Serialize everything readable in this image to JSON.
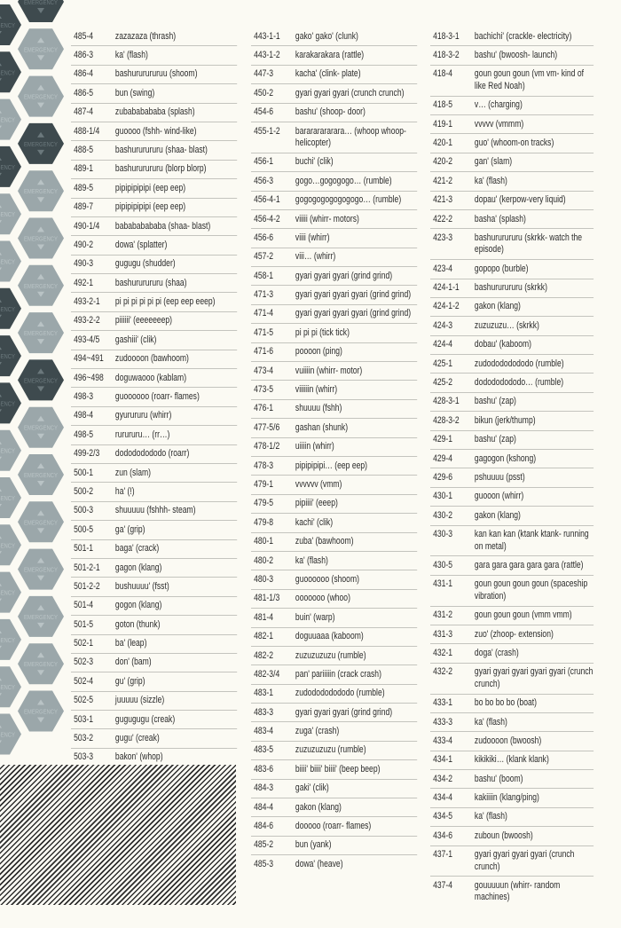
{
  "decoration": {
    "hex_label": "EMERGENCY",
    "colors": {
      "dark_hex": "#3e4a4e",
      "light_hex": "#9ba7aa",
      "dark_text": "#6b787c",
      "light_text": "#b9c3c5",
      "background": "#fbfaf3"
    }
  },
  "columns": [
    {
      "entries": [
        {
          "code": "485-4",
          "text": "zazazaza (thrash)"
        },
        {
          "code": "486-3",
          "text": "ka' (flash)"
        },
        {
          "code": "486-4",
          "text": "bashururururuu (shoom)"
        },
        {
          "code": "486-5",
          "text": "bun (swing)"
        },
        {
          "code": "487-4",
          "text": "zubababababa (splash)"
        },
        {
          "code": "488-1/4",
          "text": "guoooo (fshh- wind-like)"
        },
        {
          "code": "488-5",
          "text": "bashururururu (shaa- blast)"
        },
        {
          "code": "489-1",
          "text": "bashururururu (blorp blorp)"
        },
        {
          "code": "489-5",
          "text": "pipipipipipi (eep eep)"
        },
        {
          "code": "489-7",
          "text": "pipipipipipi (eep eep)"
        },
        {
          "code": "490-1/4",
          "text": "babababababa (shaa- blast)"
        },
        {
          "code": "490-2",
          "text": "dowa' (splatter)"
        },
        {
          "code": "490-3",
          "text": "gugugu (shudder)"
        },
        {
          "code": "492-1",
          "text": "bashururururu (shaa)"
        },
        {
          "code": "493-2-1",
          "text": "pi pi pi pi pi pi (eep eep eeep)"
        },
        {
          "code": "493-2-2",
          "text": "piiiiii' (eeeeeeep)"
        },
        {
          "code": "493-4/5",
          "text": "gashiii' (clik)"
        },
        {
          "code": "494~491",
          "text": "zudoooon (bawhoom)"
        },
        {
          "code": "496~498",
          "text": "doguwaooo (kablam)"
        },
        {
          "code": "498-3",
          "text": "guoooooo (roarr- flames)"
        },
        {
          "code": "498-4",
          "text": "gyurururu (whirr)"
        },
        {
          "code": "498-5",
          "text": "rurururu… (rr…)"
        },
        {
          "code": "499-2/3",
          "text": "dodododododo (roarr)"
        },
        {
          "code": "500-1",
          "text": "zun (slam)"
        },
        {
          "code": "500-2",
          "text": "ha' (!)"
        },
        {
          "code": "500-3",
          "text": "shuuuuu (fshhh- steam)"
        },
        {
          "code": "500-5",
          "text": "ga' (grip)"
        },
        {
          "code": "501-1",
          "text": "baga' (crack)"
        },
        {
          "code": "501-2-1",
          "text": "gagon (klang)"
        },
        {
          "code": "501-2-2",
          "text": "bushuuuu' (fsst)"
        },
        {
          "code": "501-4",
          "text": "gogon (klang)"
        },
        {
          "code": "501-5",
          "text": "goton (thunk)"
        },
        {
          "code": "502-1",
          "text": "ba' (leap)"
        },
        {
          "code": "502-3",
          "text": "don' (bam)"
        },
        {
          "code": "502-4",
          "text": "gu' (grip)"
        },
        {
          "code": "502-5",
          "text": "juuuuu (sizzle)"
        },
        {
          "code": "503-1",
          "text": "gugugugu (creak)"
        },
        {
          "code": "503-2",
          "text": "gugu' (creak)"
        },
        {
          "code": "503-3",
          "text": "bakon' (whop)"
        }
      ]
    },
    {
      "entries": [
        {
          "code": "443-1-1",
          "text": "gako' gako' (clunk)"
        },
        {
          "code": "443-1-2",
          "text": "karakarakara (rattle)"
        },
        {
          "code": "447-3",
          "text": "kacha' (clink- plate)"
        },
        {
          "code": "450-2",
          "text": "gyari gyari gyari (crunch crunch)"
        },
        {
          "code": "454-6",
          "text": "bashu' (shoop- door)"
        },
        {
          "code": "455-1-2",
          "text": "barararararara… (whoop whoop- helicopter)"
        },
        {
          "code": "456-1",
          "text": "buchi' (clik)"
        },
        {
          "code": "456-3",
          "text": "gogo…gogogogo… (rumble)"
        },
        {
          "code": "456-4-1",
          "text": "gogogogogogogogo… (rumble)"
        },
        {
          "code": "456-4-2",
          "text": "viiiii (whirr- motors)"
        },
        {
          "code": "456-6",
          "text": "viiii (whirr)"
        },
        {
          "code": "457-2",
          "text": "viii… (whirr)"
        },
        {
          "code": "458-1",
          "text": "gyari gyari gyari (grind grind)"
        },
        {
          "code": "471-3",
          "text": "gyari gyari gyari gyari (grind grind)"
        },
        {
          "code": "471-4",
          "text": "gyari gyari gyari gyari (grind grind)"
        },
        {
          "code": "471-5",
          "text": "pi pi pi (tick tick)"
        },
        {
          "code": "471-6",
          "text": "poooon (ping)"
        },
        {
          "code": "473-4",
          "text": "vuiiiin (whirr- motor)"
        },
        {
          "code": "473-5",
          "text": "viiiiiin (whirr)"
        },
        {
          "code": "476-1",
          "text": "shuuuu (fshh)"
        },
        {
          "code": "477-5/6",
          "text": "gashan (shunk)"
        },
        {
          "code": "478-1/2",
          "text": "uiiiin (whirr)"
        },
        {
          "code": "478-3",
          "text": "pipipipipi… (eep eep)"
        },
        {
          "code": "479-1",
          "text": "vvvvvv (vmm)"
        },
        {
          "code": "479-5",
          "text": "pipiiii' (eeep)"
        },
        {
          "code": "479-8",
          "text": "kachi' (clik)"
        },
        {
          "code": "480-1",
          "text": "zuba' (bawhoom)"
        },
        {
          "code": "480-2",
          "text": "ka' (flash)"
        },
        {
          "code": "480-3",
          "text": "guoooooo (shoom)"
        },
        {
          "code": "481-1/3",
          "text": "ooooooo (whoo)"
        },
        {
          "code": "481-4",
          "text": "buin' (warp)"
        },
        {
          "code": "482-1",
          "text": "doguuaaa (kaboom)"
        },
        {
          "code": "482-2",
          "text": "zuzuzuzuzu (rumble)"
        },
        {
          "code": "482-3/4",
          "text": "pan' pariiiiin (crack crash)"
        },
        {
          "code": "483-1",
          "text": "zudodododododo (rumble)"
        },
        {
          "code": "483-3",
          "text": "gyari gyari gyari (grind grind)"
        },
        {
          "code": "483-4",
          "text": "zuga' (crash)"
        },
        {
          "code": "483-5",
          "text": "zuzuzuzuzu (rumble)"
        },
        {
          "code": "483-6",
          "text": "biiii' biiii' biiii' (beep beep)"
        },
        {
          "code": "484-3",
          "text": "gaki' (clik)"
        },
        {
          "code": "484-4",
          "text": "gakon (klang)"
        },
        {
          "code": "484-6",
          "text": "dooooo (roarr- flames)"
        },
        {
          "code": "485-2",
          "text": "bun (yank)"
        },
        {
          "code": "485-3",
          "text": "dowa' (heave)"
        }
      ]
    },
    {
      "entries": [
        {
          "code": "418-3-1",
          "text": "bachichi' (crackle- electricity)"
        },
        {
          "code": "418-3-2",
          "text": "bashu' (bwoosh- launch)"
        },
        {
          "code": "418-4",
          "text": "goun goun goun (vm vm- kind of like Red Noah)"
        },
        {
          "code": "418-5",
          "text": "v… (charging)"
        },
        {
          "code": "419-1",
          "text": "vvvvv (vmmm)"
        },
        {
          "code": "420-1",
          "text": "guo' (whoom-on tracks)"
        },
        {
          "code": "420-2",
          "text": "gan' (slam)"
        },
        {
          "code": "421-2",
          "text": "ka' (flash)"
        },
        {
          "code": "421-3",
          "text": "dopau' (kerpow-very liquid)"
        },
        {
          "code": "422-2",
          "text": "basha' (splash)"
        },
        {
          "code": "423-3",
          "text": "bashururururu (skrkk- watch the episode)"
        },
        {
          "code": "423-4",
          "text": "gopopo (burble)"
        },
        {
          "code": "424-1-1",
          "text": "bashururururu (skrkk)"
        },
        {
          "code": "424-1-2",
          "text": "gakon (klang)"
        },
        {
          "code": "424-3",
          "text": "zuzuzuzu… (skrkk)"
        },
        {
          "code": "424-4",
          "text": "dobau' (kaboom)"
        },
        {
          "code": "425-1",
          "text": "zudodododododo (rumble)"
        },
        {
          "code": "425-2",
          "text": "dodododododo… (rumble)"
        },
        {
          "code": "428-3-1",
          "text": "bashu' (zap)"
        },
        {
          "code": "428-3-2",
          "text": "bikun (jerk/thump)"
        },
        {
          "code": "429-1",
          "text": "bashu' (zap)"
        },
        {
          "code": "429-4",
          "text": "gagogon (kshong)"
        },
        {
          "code": "429-6",
          "text": "pshuuuu (psst)"
        },
        {
          "code": "430-1",
          "text": "guooon (whirr)"
        },
        {
          "code": "430-2",
          "text": "gakon (klang)"
        },
        {
          "code": "430-3",
          "text": "kan kan kan (ktank ktank- running on metal)"
        },
        {
          "code": "430-5",
          "text": "gara gara gara gara gara (rattle)"
        },
        {
          "code": "431-1",
          "text": "goun goun goun goun (spaceship vibration)"
        },
        {
          "code": "431-2",
          "text": "goun goun goun (vmm vmm)"
        },
        {
          "code": "431-3",
          "text": "zuo' (zhoop- extension)"
        },
        {
          "code": "432-1",
          "text": "doga' (crash)"
        },
        {
          "code": "432-2",
          "text": "gyari gyari gyari gyari gyari (crunch crunch)"
        },
        {
          "code": "433-1",
          "text": "bo bo bo bo (boat)"
        },
        {
          "code": "433-3",
          "text": "ka' (flash)"
        },
        {
          "code": "433-4",
          "text": "zudoooon (bwoosh)"
        },
        {
          "code": "434-1",
          "text": "kikikiki… (klank klank)"
        },
        {
          "code": "434-2",
          "text": "bashu' (boom)"
        },
        {
          "code": "434-4",
          "text": "kakiiiin (klang/ping)"
        },
        {
          "code": "434-5",
          "text": "ka' (flash)"
        },
        {
          "code": "434-6",
          "text": "zuboun (bwoosh)"
        },
        {
          "code": "437-1",
          "text": "gyari gyari gyari gyari (crunch crunch)"
        },
        {
          "code": "437-4",
          "text": "gouuuuun (whirr- random machines)"
        }
      ]
    }
  ]
}
